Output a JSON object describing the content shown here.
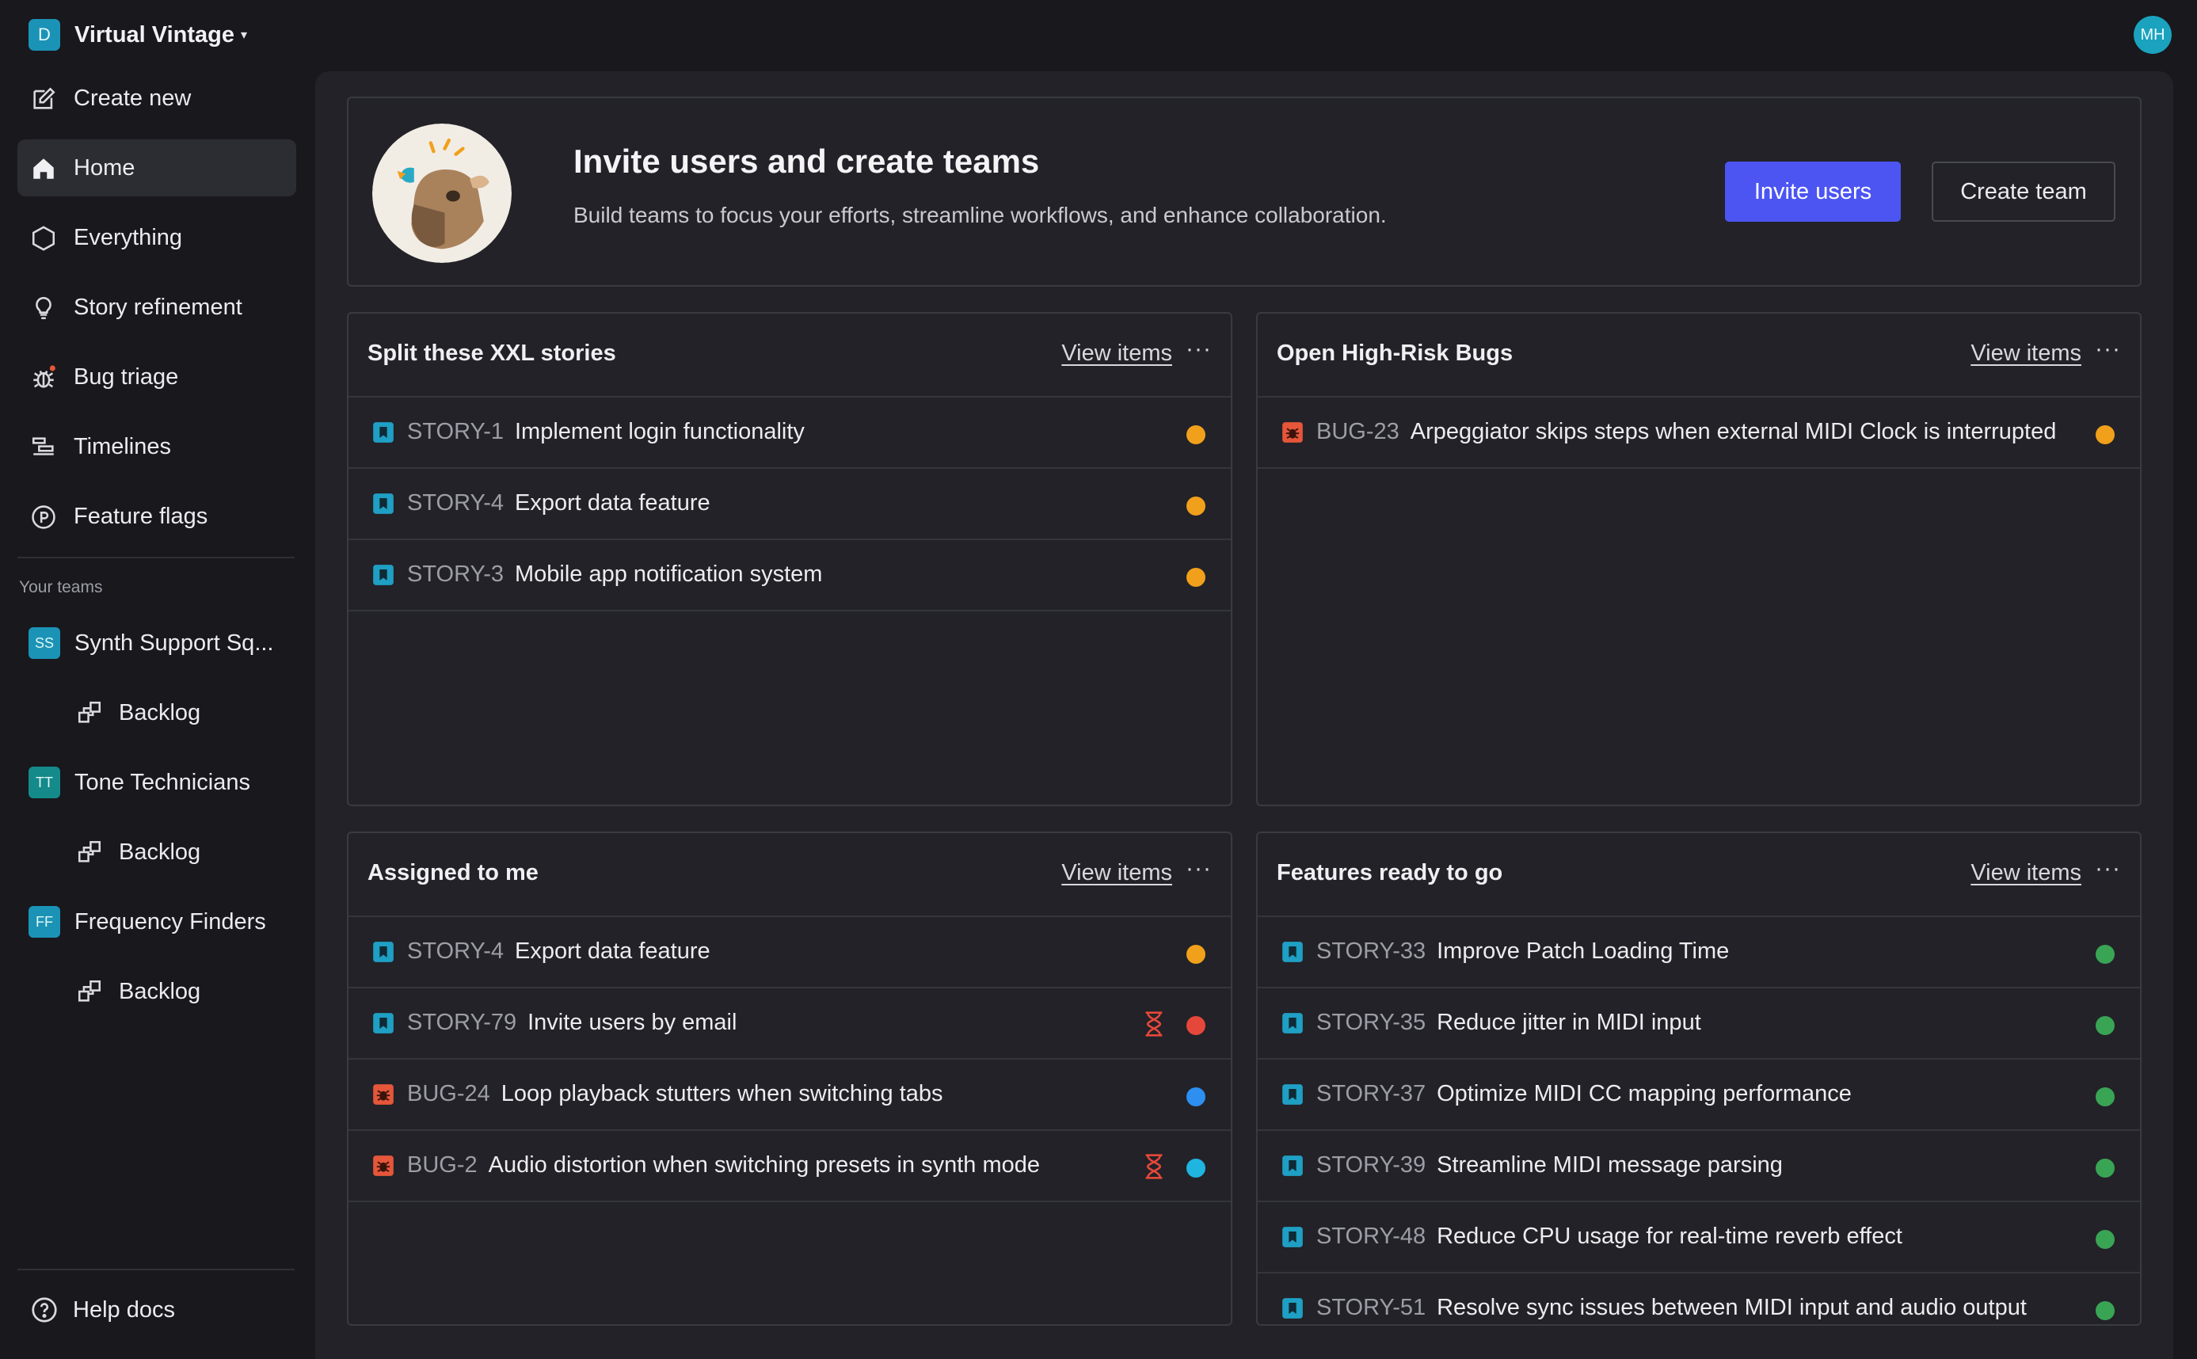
{
  "workspace": {
    "badge": "D",
    "name": "Virtual Vintage",
    "caret": "▾"
  },
  "user": {
    "initials": "MH"
  },
  "nav": [
    {
      "label": "Create new",
      "icon": "edit-icon"
    },
    {
      "label": "Home",
      "icon": "home-icon",
      "active": true
    },
    {
      "label": "Everything",
      "icon": "hexagon-icon"
    },
    {
      "label": "Story refinement",
      "icon": "lightbulb-icon"
    },
    {
      "label": "Bug triage",
      "icon": "bug-icon"
    },
    {
      "label": "Timelines",
      "icon": "timeline-icon"
    },
    {
      "label": "Feature flags",
      "icon": "flag-icon"
    }
  ],
  "teams_label": "Your teams",
  "teams": [
    {
      "badge": "SS",
      "name": "Synth Support Sq...",
      "color": "#1b93b6",
      "backlog": "Backlog"
    },
    {
      "badge": "TT",
      "name": "Tone Technicians",
      "color": "#148a8a",
      "backlog": "Backlog"
    },
    {
      "badge": "FF",
      "name": "Frequency Finders",
      "color": "#1b93b6",
      "backlog": "Backlog"
    }
  ],
  "help": "Help docs",
  "banner": {
    "title": "Invite users and create teams",
    "subtitle": "Build teams to focus your efforts, streamline workflows, and enhance collaboration.",
    "invite_label": "Invite users",
    "create_label": "Create team"
  },
  "colors": {
    "accent": "#4c55f2",
    "story": "#1f9fc4",
    "bug": "#e5563a",
    "orange": "#f1a01b",
    "red": "#e5473a",
    "blue": "#2d8ff0",
    "cyan": "#1fb5e0",
    "green": "#3aa455"
  },
  "cards": [
    {
      "title": "Split these XXL stories",
      "link": "View items",
      "more": "···",
      "rows": [
        {
          "type": "story",
          "key": "STORY-1",
          "title": "Implement login functionality",
          "status": "orange"
        },
        {
          "type": "story",
          "key": "STORY-4",
          "title": "Export data feature",
          "status": "orange"
        },
        {
          "type": "story",
          "key": "STORY-3",
          "title": "Mobile app notification system",
          "status": "orange"
        }
      ]
    },
    {
      "title": "Open High-Risk Bugs",
      "link": "View items",
      "more": "···",
      "rows": [
        {
          "type": "bug",
          "key": "BUG-23",
          "title": "Arpeggiator skips steps when external MIDI Clock is interrupted",
          "status": "orange"
        }
      ]
    },
    {
      "title": "Assigned to me",
      "link": "View items",
      "more": "···",
      "rows": [
        {
          "type": "story",
          "key": "STORY-4",
          "title": "Export data feature",
          "status": "orange"
        },
        {
          "type": "story",
          "key": "STORY-79",
          "title": "Invite users by email",
          "status": "red",
          "waiting": true
        },
        {
          "type": "bug",
          "key": "BUG-24",
          "title": "Loop playback stutters when switching tabs",
          "status": "blue"
        },
        {
          "type": "bug",
          "key": "BUG-2",
          "title": "Audio distortion when switching presets in synth mode",
          "status": "cyan",
          "waiting": true
        }
      ]
    },
    {
      "title": "Features ready to go",
      "link": "View items",
      "more": "···",
      "rows": [
        {
          "type": "story",
          "key": "STORY-33",
          "title": "Improve Patch Loading Time",
          "status": "green"
        },
        {
          "type": "story",
          "key": "STORY-35",
          "title": "Reduce jitter in MIDI input",
          "status": "green"
        },
        {
          "type": "story",
          "key": "STORY-37",
          "title": "Optimize MIDI CC mapping performance",
          "status": "green"
        },
        {
          "type": "story",
          "key": "STORY-39",
          "title": "Streamline MIDI message parsing",
          "status": "green"
        },
        {
          "type": "story",
          "key": "STORY-48",
          "title": "Reduce CPU usage for real-time reverb effect",
          "status": "green"
        },
        {
          "type": "story",
          "key": "STORY-51",
          "title": "Resolve sync issues between MIDI input and audio output",
          "status": "green"
        }
      ]
    }
  ]
}
